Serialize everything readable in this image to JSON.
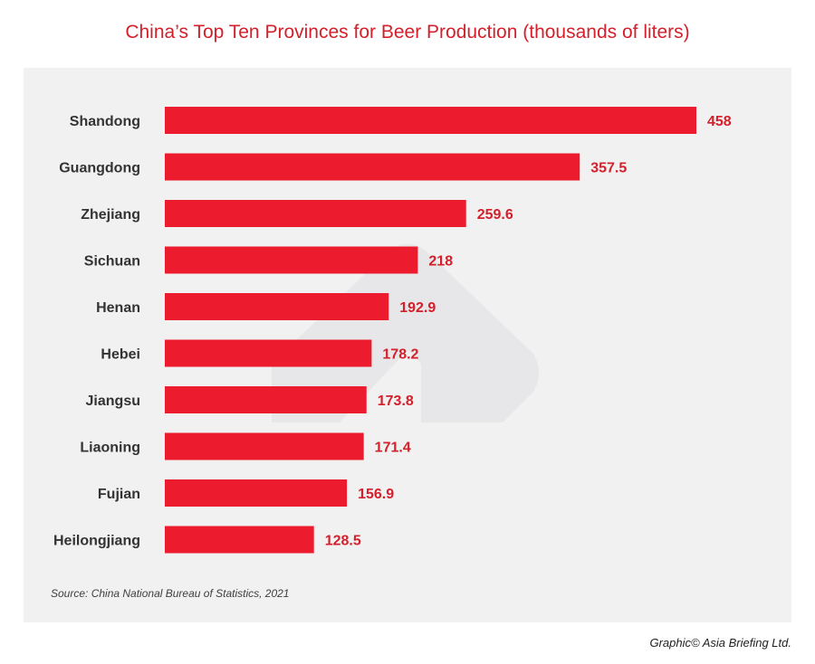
{
  "title": "China’s Top Ten Provinces for Beer Production (thousands of liters)",
  "source": "Source: China National Bureau of Statistics, 2021",
  "credit": "Graphic© Asia Briefing Ltd.",
  "colors": {
    "bar": "#ec1c2e",
    "label": "#d3202b",
    "category": "#333333",
    "panel": "#f1f1f1"
  },
  "chart_data": {
    "type": "bar",
    "orientation": "horizontal",
    "title": "China’s Top Ten Provinces for Beer Production (thousands of liters)",
    "xlabel": "",
    "ylabel": "",
    "categories": [
      "Shandong",
      "Guangdong",
      "Zhejiang",
      "Sichuan",
      "Henan",
      "Hebei",
      "Jiangsu",
      "Liaoning",
      "Fujian",
      "Heilongjiang"
    ],
    "values": [
      458,
      357.5,
      259.6,
      218,
      192.9,
      178.2,
      173.8,
      171.4,
      156.9,
      128.5
    ],
    "value_labels": [
      "458",
      "357.5",
      "259.6",
      "218",
      "192.9",
      "178.2",
      "173.8",
      "171.4",
      "156.9",
      "128.5"
    ],
    "xlim": [
      0,
      458
    ],
    "grid": false,
    "legend": "none"
  }
}
